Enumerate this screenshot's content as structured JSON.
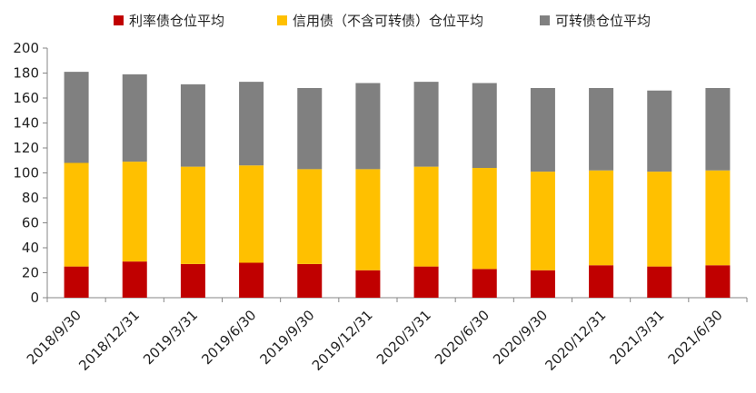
{
  "chart_data": {
    "type": "bar",
    "stacked": true,
    "categories": [
      "2018/9/30",
      "2018/12/31",
      "2019/3/31",
      "2019/6/30",
      "2019/9/30",
      "2019/12/31",
      "2020/3/31",
      "2020/6/30",
      "2020/9/30",
      "2020/12/31",
      "2021/3/31",
      "2021/6/30"
    ],
    "series": [
      {
        "name": "利率债仓位平均",
        "color": "#c00000",
        "values": [
          25,
          29,
          27,
          28,
          27,
          22,
          25,
          23,
          22,
          26,
          25,
          26
        ]
      },
      {
        "name": "信用债（不含可转债）仓位平均",
        "color": "#ffc000",
        "values": [
          83,
          80,
          78,
          78,
          76,
          81,
          80,
          81,
          79,
          76,
          76,
          76
        ]
      },
      {
        "name": "可转债仓位平均",
        "color": "#808080",
        "values": [
          73,
          70,
          66,
          67,
          65,
          69,
          68,
          68,
          67,
          66,
          65,
          66
        ]
      }
    ],
    "ylim": [
      0,
      200
    ],
    "yticks": [
      0,
      20,
      40,
      60,
      80,
      100,
      120,
      140,
      160,
      180,
      200
    ],
    "grid": false,
    "legend": "top"
  }
}
